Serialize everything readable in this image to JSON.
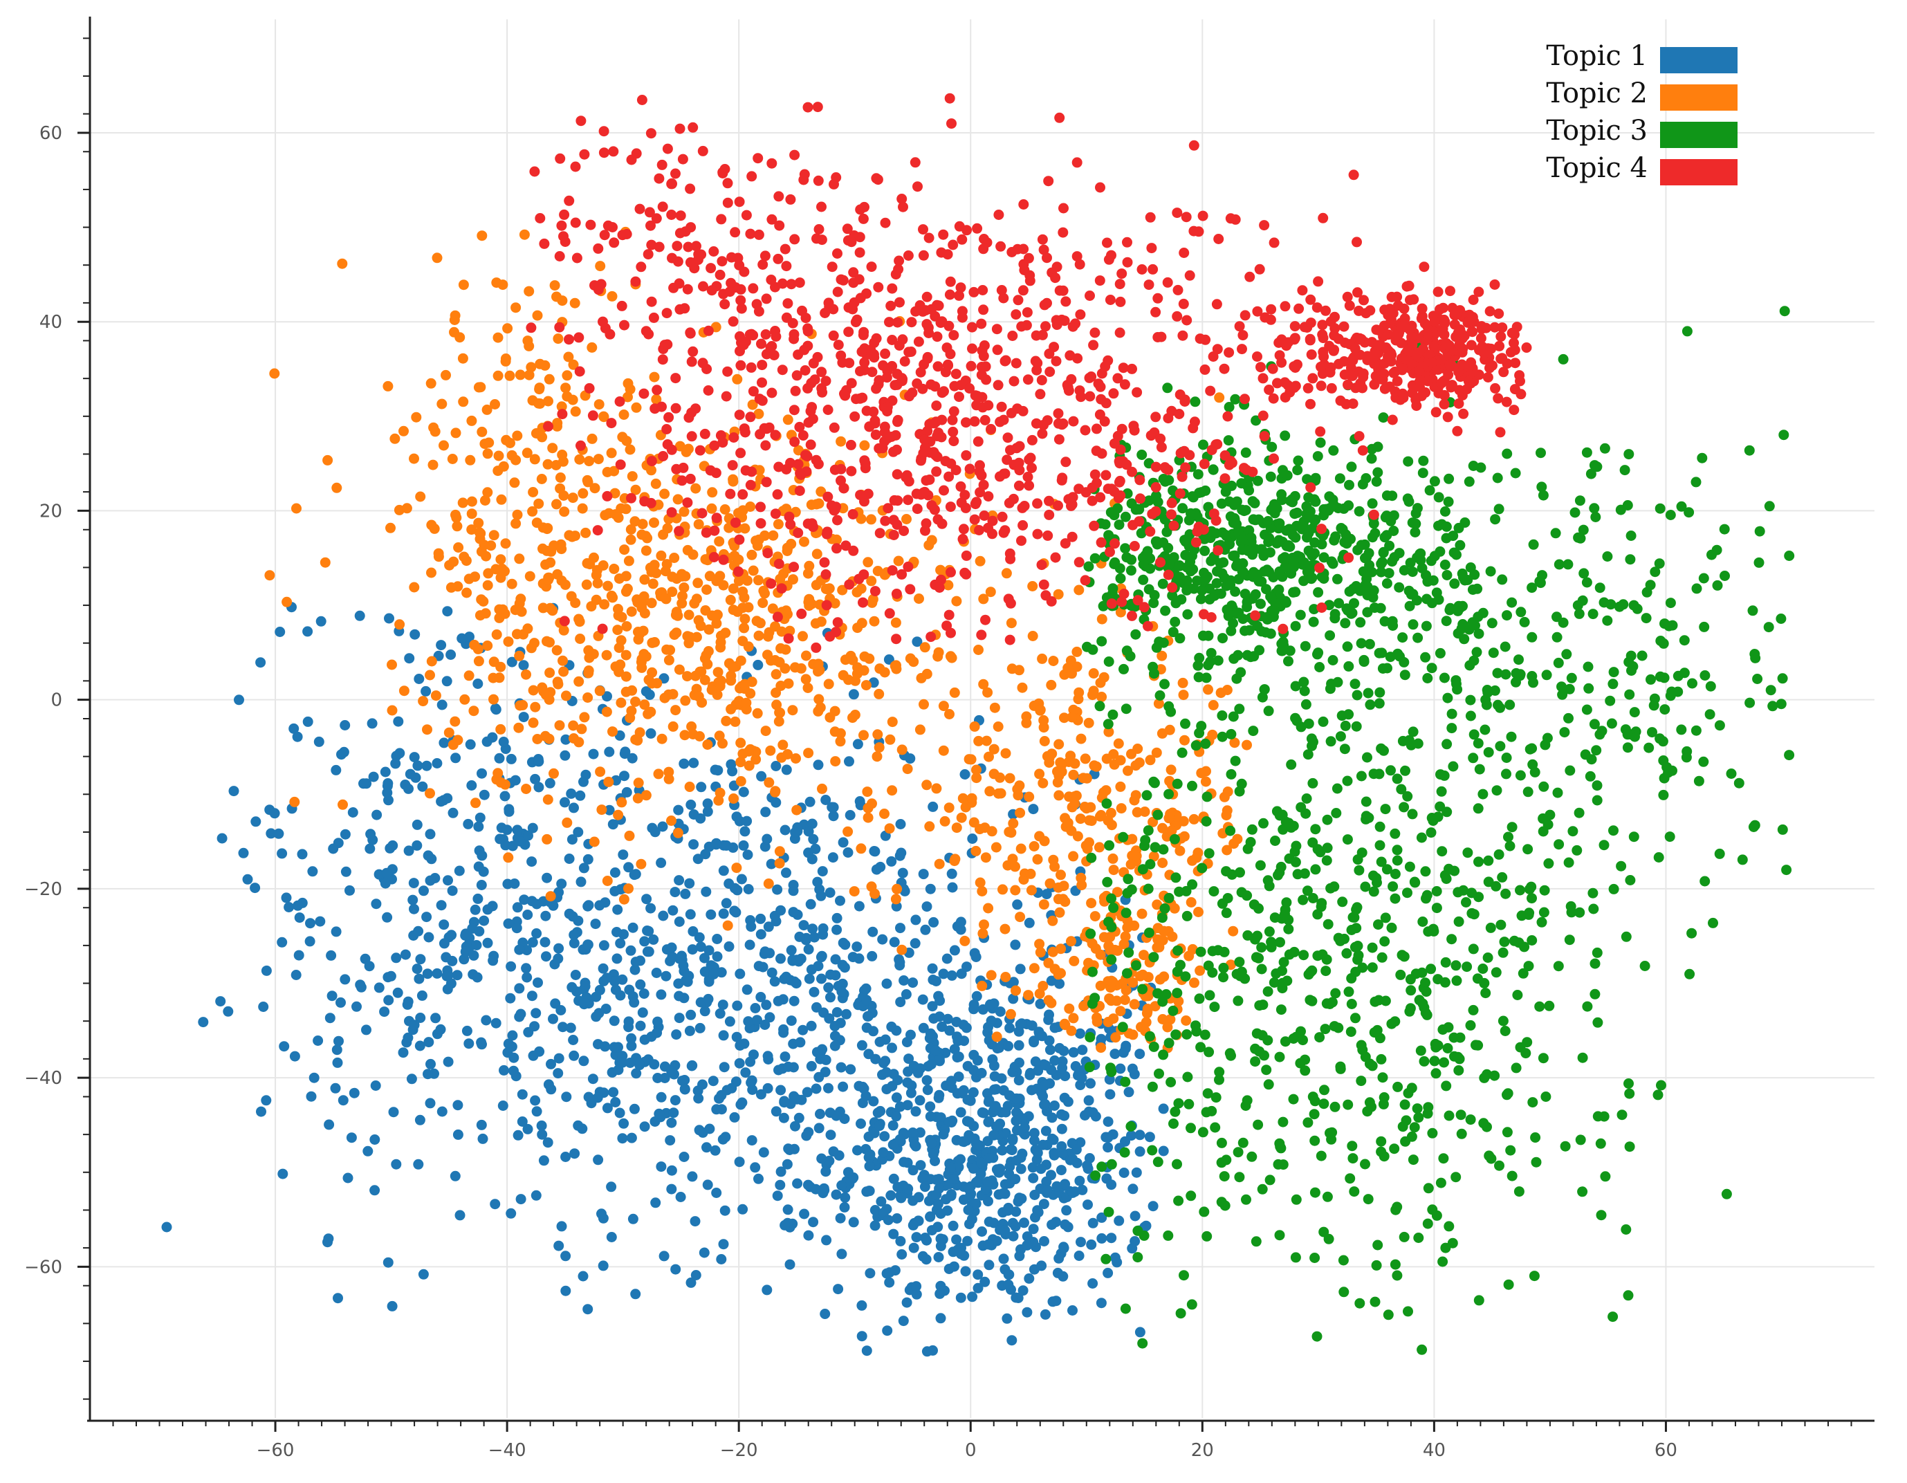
{
  "chart_data": {
    "type": "scatter",
    "title": "",
    "xlabel": "",
    "ylabel": "",
    "xlim": [
      -76,
      78
    ],
    "ylim": [
      -76,
      72
    ],
    "x_ticks": [
      -60,
      -40,
      -20,
      0,
      20,
      40,
      60
    ],
    "y_ticks": [
      60,
      40,
      20,
      0,
      -20,
      -40,
      -60
    ],
    "x_tick_labels": [
      "−60",
      "−40",
      "−20",
      "0",
      "20",
      "40",
      "60"
    ],
    "y_tick_labels": [
      "60",
      "40",
      "20",
      "0",
      "−20",
      "−40",
      "−60"
    ],
    "grid": true,
    "legend_position": "top-right",
    "series": [
      {
        "name": "Topic 1",
        "color": "#1F77B4",
        "description_region": "lower-left quadrant with dense blob near (2,-48)",
        "clusters": [
          {
            "cx": 2,
            "cy": -48,
            "sx": 7,
            "sy": 9,
            "n": 650
          },
          {
            "cx": -22,
            "cy": -30,
            "sx": 16,
            "sy": 14,
            "n": 900
          },
          {
            "cx": -45,
            "cy": -15,
            "sx": 9,
            "sy": 16,
            "n": 260
          }
        ],
        "x_range": [
          -70,
          17
        ],
        "y_range": [
          -70,
          10
        ]
      },
      {
        "name": "Topic 2",
        "color": "#FF7F0E",
        "description_region": "center-left, with a hooked tail near (12,-30)",
        "clusters": [
          {
            "cx": -22,
            "cy": 8,
            "sx": 12,
            "sy": 11,
            "n": 700
          },
          {
            "cx": -38,
            "cy": 25,
            "sx": 8,
            "sy": 12,
            "n": 220
          },
          {
            "cx": 10,
            "cy": -12,
            "sx": 8,
            "sy": 8,
            "n": 320
          },
          {
            "cx": 13,
            "cy": -30,
            "sx": 4,
            "sy": 5,
            "n": 140
          }
        ],
        "x_range": [
          -64,
          24
        ],
        "y_range": [
          -37,
          50
        ]
      },
      {
        "name": "Topic 3",
        "color": "#109618",
        "description_region": "right half with a dense ellipse near (25,15)",
        "clusters": [
          {
            "cx": 25,
            "cy": 15,
            "sx": 9,
            "sy": 6,
            "n": 700
          },
          {
            "cx": 32,
            "cy": -28,
            "sx": 13,
            "sy": 18,
            "n": 800
          },
          {
            "cx": 55,
            "cy": 5,
            "sx": 9,
            "sy": 14,
            "n": 260
          }
        ],
        "x_range": [
          10,
          71
        ],
        "y_range": [
          -70,
          43
        ]
      },
      {
        "name": "Topic 4",
        "color": "#EE2A2A",
        "description_region": "upper center with a dense blob near (38,37)",
        "clusters": [
          {
            "cx": 38,
            "cy": 37,
            "sx": 6,
            "sy": 3,
            "n": 420
          },
          {
            "cx": -2,
            "cy": 30,
            "sx": 15,
            "sy": 12,
            "n": 900
          },
          {
            "cx": -25,
            "cy": 50,
            "sx": 10,
            "sy": 7,
            "n": 160
          }
        ],
        "x_range": [
          -38,
          48
        ],
        "y_range": [
          5,
          66
        ]
      }
    ]
  }
}
